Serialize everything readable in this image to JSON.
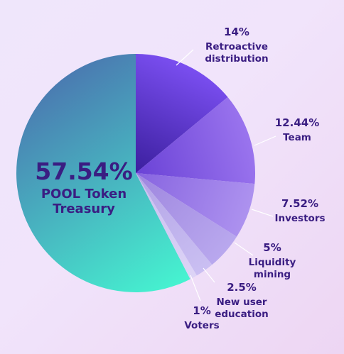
{
  "chart_data": {
    "type": "pie",
    "title": "",
    "slices": [
      {
        "label": "Retroactive distribution",
        "label_lines": [
          "Retroactive",
          "distribution"
        ],
        "value": 14,
        "value_text": "14%",
        "color_from": "#7a4ef0",
        "color_to": "#3b1f9e"
      },
      {
        "label": "Team",
        "label_lines": [
          "Team"
        ],
        "value": 12.44,
        "value_text": "12.44%",
        "color_from": "#9a74ee",
        "color_to": "#6a42d6"
      },
      {
        "label": "Investors",
        "label_lines": [
          "Investors"
        ],
        "value": 7.52,
        "value_text": "7.52%",
        "color_from": "#ad92ef",
        "color_to": "#8764e0"
      },
      {
        "label": "Liquidity mining",
        "label_lines": [
          "Liquidity",
          "mining"
        ],
        "value": 5,
        "value_text": "5%",
        "color_from": "#b9a8ee",
        "color_to": "#9e86df"
      },
      {
        "label": "New user education",
        "label_lines": [
          "New user",
          "education"
        ],
        "value": 2.5,
        "value_text": "2.5%",
        "color_from": "#cabff2",
        "color_to": "#b3a4e6"
      },
      {
        "label": "Voters",
        "label_lines": [
          "Voters"
        ],
        "value": 1,
        "value_text": "1%",
        "color_from": "#ddd4f6",
        "color_to": "#c8bdf0"
      },
      {
        "label": "POOL Token Treasury",
        "label_lines": [
          "POOL Token",
          "Treasury"
        ],
        "value": 57.54,
        "value_text": "57.54%",
        "color_from": "#46f2d0",
        "color_to": "#4a76b0"
      }
    ]
  }
}
